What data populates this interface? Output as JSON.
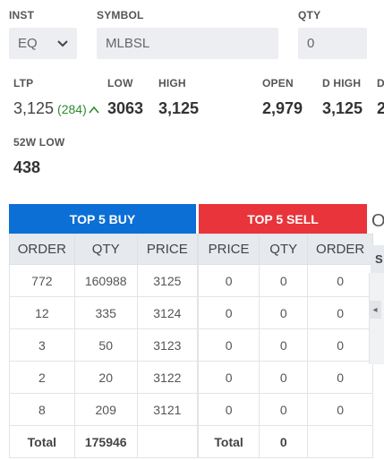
{
  "form": {
    "inst_label": "INST",
    "inst_value": "EQ",
    "symbol_label": "SYMBOL",
    "symbol_placeholder": "MLBSL",
    "qty_label": "QTY",
    "qty_placeholder": "0"
  },
  "stats": {
    "ltp_label": "LTP",
    "ltp_value": "3,125",
    "ltp_change": "(284)",
    "low_label": "LOW",
    "low_value": "3063",
    "high_label": "HIGH",
    "high_value": "3,125",
    "open_label": "OPEN",
    "open_value": "2,979",
    "dhigh_label": "D HIGH",
    "dhigh_value": "3,125",
    "cut_label": "D",
    "cut_value": "2",
    "w52low_label": "52W LOW",
    "w52low_value": "438"
  },
  "depth": {
    "buy_title": "TOP 5 BUY",
    "sell_title": "TOP 5 SELL",
    "buy_headers": [
      "ORDER",
      "QTY",
      "PRICE"
    ],
    "sell_headers": [
      "PRICE",
      "QTY",
      "ORDER"
    ],
    "buy_rows": [
      [
        "772",
        "160988",
        "3125"
      ],
      [
        "12",
        "335",
        "3124"
      ],
      [
        "3",
        "50",
        "3123"
      ],
      [
        "2",
        "20",
        "3122"
      ],
      [
        "8",
        "209",
        "3121"
      ]
    ],
    "sell_rows": [
      [
        "0",
        "0",
        "0"
      ],
      [
        "0",
        "0",
        "0"
      ],
      [
        "0",
        "0",
        "0"
      ],
      [
        "0",
        "0",
        "0"
      ],
      [
        "0",
        "0",
        "0"
      ]
    ],
    "buy_total_label": "Total",
    "buy_total_qty": "175946",
    "sell_total_label": "Total",
    "sell_total_qty": "0"
  },
  "side_panel": {
    "title_fragment": "O",
    "header_fragment": "S",
    "scroll_arrow": "◂"
  },
  "colors": {
    "buy": "#0b6fd6",
    "sell": "#e8343a",
    "change": "#2e8b2e"
  }
}
